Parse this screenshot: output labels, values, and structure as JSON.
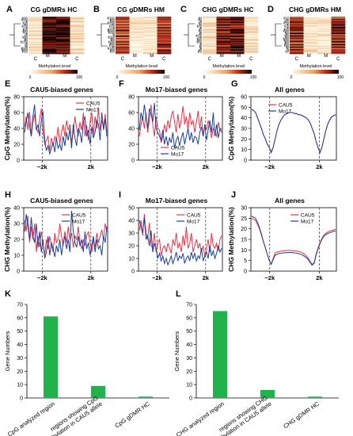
{
  "colors": {
    "cau5": "#ee3347",
    "mo17": "#1c3f9e",
    "bar": "#22b24c",
    "heat_low": "#fdf6e3",
    "heat_mid": "#e06a30",
    "heat_high": "#120303",
    "dendro": "#000000"
  },
  "heatmaps": [
    {
      "letter": "A",
      "title": "CG gDMRs HC",
      "cols": [
        "C",
        "M",
        "M",
        "C"
      ],
      "col_row": [
        [
          "C",
          "",
          "C"
        ],
        [
          "M",
          "M",
          ""
        ]
      ],
      "legend_title": "Methylation level",
      "legend_min": "0",
      "legend_max": "100",
      "cells": [
        [
          0.15,
          0.95,
          0.95,
          0.15
        ],
        [
          0.1,
          0.9,
          0.92,
          0.12
        ],
        [
          0.2,
          0.97,
          0.94,
          0.18
        ]
      ]
    },
    {
      "letter": "B",
      "title": "CG gDMRs HM",
      "cols": [
        "C",
        "M",
        "M",
        "C"
      ],
      "legend_title": "Methylation level",
      "legend_min": "0",
      "legend_max": "100",
      "cells": [
        [
          0.7,
          0.05,
          0.08,
          0.72
        ],
        [
          0.55,
          0.1,
          0.12,
          0.6
        ],
        [
          0.85,
          0.02,
          0.04,
          0.88
        ]
      ]
    },
    {
      "letter": "C",
      "title": "CHG gDMRs HC",
      "cols": [
        "C",
        "M",
        "M",
        "C"
      ],
      "legend_title": "Methylation level",
      "legend_min": "0",
      "legend_max": "100",
      "cells": [
        [
          0.12,
          0.85,
          0.88,
          0.1
        ],
        [
          0.2,
          0.7,
          0.75,
          0.22
        ],
        [
          0.08,
          0.95,
          0.92,
          0.06
        ]
      ]
    },
    {
      "letter": "D",
      "title": "CHG gDMRs HM",
      "cols": [
        "C",
        "M",
        "M",
        "C"
      ],
      "legend_title": "Methylation level",
      "legend_min": "0",
      "legend_max": "100",
      "cells": [
        [
          0.75,
          0.1,
          0.12,
          0.78
        ],
        [
          0.6,
          0.15,
          0.14,
          0.62
        ],
        [
          0.9,
          0.05,
          0.06,
          0.92
        ]
      ]
    }
  ],
  "chart_data": [
    {
      "panel": "E",
      "type": "line",
      "title": "CAU5-biased genes",
      "ylabel": "CpG Methylation(%)",
      "ylim": [
        0,
        80
      ],
      "yticks": [
        0,
        20,
        40,
        60,
        80
      ],
      "xticks": [
        "−2k",
        "2k"
      ],
      "legend_position": "none",
      "grid": false,
      "series": [
        {
          "name": "CAU5",
          "values": [
            42,
            55,
            38,
            61,
            30,
            48,
            58,
            40,
            35,
            52,
            65,
            38,
            20,
            25,
            30,
            12,
            28,
            18,
            30,
            25,
            42,
            20,
            35,
            45,
            30,
            50,
            38,
            45,
            22,
            35,
            55,
            40,
            30,
            48,
            38,
            60,
            30,
            44,
            25,
            48,
            60,
            32,
            55,
            40,
            65,
            38,
            50,
            42,
            58,
            35
          ]
        },
        {
          "name": "Mo17",
          "values": [
            35,
            48,
            60,
            42,
            30,
            55,
            70,
            38,
            45,
            30,
            50,
            62,
            25,
            12,
            18,
            8,
            15,
            22,
            10,
            28,
            15,
            20,
            12,
            30,
            18,
            35,
            25,
            40,
            15,
            45,
            28,
            18,
            40,
            35,
            22,
            48,
            55,
            30,
            38,
            20,
            42,
            28,
            35,
            50,
            45,
            25,
            60,
            38,
            52,
            30
          ]
        }
      ]
    },
    {
      "panel": "F",
      "type": "line",
      "title": "Mo17-biased genes",
      "ylabel": "",
      "ylim": [
        0,
        80
      ],
      "yticks": [
        0,
        20,
        40,
        60,
        80
      ],
      "xticks": [
        "−2k",
        "2k"
      ],
      "legend_position": "bottom-left",
      "grid": false,
      "series": [
        {
          "name": "CAU5",
          "values": [
            30,
            45,
            55,
            40,
            60,
            35,
            50,
            70,
            45,
            30,
            55,
            40,
            38,
            22,
            30,
            45,
            35,
            50,
            40,
            55,
            62,
            48,
            35,
            58,
            40,
            52,
            68,
            45,
            55,
            38,
            60,
            45,
            50,
            35,
            48,
            62,
            40,
            55,
            30,
            45,
            38,
            50,
            42,
            28,
            40,
            35,
            30,
            48,
            38,
            40
          ]
        },
        {
          "name": "Mo17",
          "values": [
            38,
            60,
            50,
            70,
            55,
            40,
            65,
            58,
            48,
            72,
            40,
            35,
            30,
            25,
            38,
            20,
            30,
            18,
            28,
            22,
            35,
            15,
            25,
            30,
            18,
            28,
            35,
            20,
            30,
            40,
            25,
            35,
            22,
            30,
            28,
            20,
            35,
            42,
            30,
            45,
            25,
            38,
            50,
            35,
            60,
            30,
            45,
            28,
            40,
            35
          ]
        }
      ]
    },
    {
      "panel": "G",
      "type": "line",
      "title": "All genes",
      "ylabel": "CpG Methylation(%)",
      "ylim": [
        0,
        60
      ],
      "yticks": [
        0,
        10,
        20,
        30,
        40,
        50,
        60
      ],
      "xticks": [
        "−2k",
        "2k"
      ],
      "legend_position": "top-left",
      "grid": false,
      "series": [
        {
          "name": "CAU5",
          "values": [
            48,
            47,
            45,
            40,
            35,
            30,
            24,
            20,
            15,
            12,
            8,
            12,
            20,
            28,
            34,
            38,
            41,
            43,
            44,
            45,
            45,
            45,
            44,
            44,
            43,
            43,
            42,
            41,
            40,
            38,
            35,
            30,
            25,
            18,
            12,
            8,
            12,
            20,
            28,
            34,
            38,
            41,
            42,
            43
          ]
        },
        {
          "name": "Mo17",
          "values": [
            48,
            47,
            45,
            40,
            35,
            30,
            24,
            20,
            15,
            12,
            7,
            12,
            20,
            28,
            34,
            38,
            41,
            43,
            44,
            45,
            45,
            45,
            44,
            44,
            43,
            43,
            42,
            41,
            40,
            38,
            35,
            30,
            25,
            18,
            12,
            7,
            12,
            20,
            28,
            34,
            38,
            41,
            42,
            43
          ]
        }
      ]
    },
    {
      "panel": "H",
      "type": "line",
      "title": "CAU5-biased genes",
      "ylabel": "CHG Methylation(%)",
      "ylim": [
        0,
        40
      ],
      "yticks": [
        0,
        10,
        20,
        30,
        40
      ],
      "xticks": [
        "−2k",
        "2k"
      ],
      "legend_position": "top-right",
      "grid": false,
      "series": [
        {
          "name": "CAU5",
          "values": [
            32,
            25,
            35,
            18,
            28,
            20,
            30,
            12,
            22,
            15,
            25,
            18,
            10,
            20,
            14,
            22,
            16,
            12,
            24,
            18,
            20,
            30,
            22,
            16,
            25,
            18,
            28,
            20,
            24,
            15,
            22,
            20,
            28,
            18,
            14,
            20,
            16,
            22,
            25,
            18,
            12,
            20,
            15,
            24,
            18,
            22,
            26,
            20,
            30,
            25
          ]
        },
        {
          "name": "Mo17",
          "values": [
            25,
            36,
            28,
            20,
            34,
            22,
            18,
            30,
            15,
            25,
            12,
            20,
            8,
            12,
            22,
            10,
            18,
            14,
            9,
            16,
            12,
            20,
            10,
            18,
            22,
            14,
            20,
            12,
            38,
            25,
            18,
            15,
            22,
            16,
            20,
            12,
            25,
            14,
            18,
            10,
            16,
            22,
            12,
            20,
            14,
            16,
            10,
            22,
            18,
            28
          ]
        }
      ]
    },
    {
      "panel": "I",
      "type": "line",
      "title": "Mo17-biased genes",
      "ylabel": "",
      "ylim": [
        0,
        50
      ],
      "yticks": [
        0,
        10,
        20,
        30,
        40,
        50
      ],
      "xticks": [
        "−2k",
        "2k"
      ],
      "legend_position": "top-right",
      "grid": false,
      "series": [
        {
          "name": "CAU5",
          "values": [
            32,
            40,
            28,
            45,
            30,
            25,
            38,
            20,
            18,
            30,
            15,
            22,
            25,
            12,
            18,
            20,
            15,
            22,
            18,
            14,
            25,
            20,
            30,
            18,
            22,
            15,
            28,
            20,
            35,
            18,
            22,
            30,
            15,
            20,
            25,
            18,
            22,
            15,
            20,
            12,
            18,
            25,
            15,
            30,
            20,
            18,
            22,
            16,
            25,
            28
          ]
        },
        {
          "name": "Mo17",
          "values": [
            40,
            35,
            30,
            42,
            25,
            28,
            20,
            32,
            15,
            22,
            18,
            10,
            14,
            8,
            12,
            6,
            10,
            5,
            8,
            12,
            6,
            10,
            15,
            8,
            12,
            10,
            14,
            6,
            10,
            12,
            8,
            15,
            10,
            14,
            8,
            12,
            10,
            18,
            8,
            12,
            15,
            10,
            20,
            12,
            16,
            10,
            14,
            20,
            15,
            18
          ]
        }
      ]
    },
    {
      "panel": "J",
      "type": "line",
      "title": "All genes",
      "ylabel": "CHG Methylation(%)",
      "ylim": [
        0,
        30
      ],
      "yticks": [
        0,
        5,
        10,
        15,
        20,
        25,
        30
      ],
      "xticks": [
        "−2k",
        "2k"
      ],
      "legend_position": "top-right",
      "grid": false,
      "series": [
        {
          "name": "CAU5",
          "values": [
            25,
            24.5,
            24,
            22,
            20,
            17,
            14,
            11,
            8,
            5,
            3.5,
            6,
            8.5,
            9,
            9.2,
            9.5,
            9.6,
            9.7,
            9.8,
            9.8,
            9.8,
            9.7,
            9.6,
            9.5,
            9.3,
            9,
            8.6,
            8,
            7.2,
            6,
            4.5,
            3.2,
            4,
            8,
            11,
            13.5,
            15.5,
            17,
            18,
            18.5,
            19,
            19.2,
            19.5,
            19.8
          ]
        },
        {
          "name": "Mo17",
          "values": [
            26,
            25.5,
            25,
            23,
            20.5,
            17.5,
            14,
            11,
            8,
            5,
            3.2,
            5.5,
            7.5,
            8,
            8.3,
            8.5,
            8.6,
            8.7,
            8.7,
            8.8,
            8.8,
            8.7,
            8.6,
            8.5,
            8.3,
            8,
            7.6,
            7,
            6.4,
            5.4,
            4,
            2.8,
            3.6,
            7.5,
            10.5,
            13,
            15,
            16.5,
            17.3,
            17.8,
            18.2,
            18.5,
            18.8,
            19
          ]
        }
      ]
    },
    {
      "panel": "K",
      "type": "bar",
      "title": "",
      "ylabel": "Gene Numbers",
      "ylim": [
        0,
        70
      ],
      "yticks": [
        0,
        10,
        20,
        30,
        40,
        50,
        60,
        70
      ],
      "categories": [
        "CpG analyzed region",
        "regions showing CpG hypermethylation in CAU5 allele",
        "CpG gDMR HC"
      ],
      "category_lines": [
        [
          "CpG analyzed region"
        ],
        [
          "regions showing CpG",
          "hypermethylation in CAU5 allele"
        ],
        [
          "CpG gDMR HC"
        ]
      ],
      "values": [
        61,
        9,
        1
      ]
    },
    {
      "panel": "L",
      "type": "bar",
      "title": "",
      "ylabel": "Gene Numbers",
      "ylim": [
        0,
        70
      ],
      "yticks": [
        0,
        10,
        20,
        30,
        40,
        50,
        60,
        70
      ],
      "categories": [
        "CHG analyzed region",
        "regions showing CHG hypermethylation in CAU5 allele",
        "CHG gDMR HC"
      ],
      "category_lines": [
        [
          "CHG analyzed region"
        ],
        [
          "regions showing CHG",
          "hypermethylation in CAU5 allele"
        ],
        [
          "CHG gDMR HC"
        ]
      ],
      "values": [
        65,
        6,
        1
      ]
    }
  ]
}
